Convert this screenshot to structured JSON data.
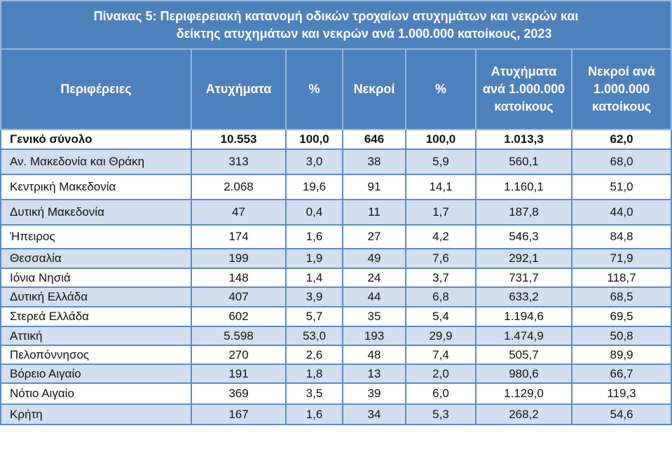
{
  "table": {
    "title_line1": "Πίνακας 5: Περιφερειακή κατανομή οδικών τροχαίων ατυχημάτων και νεκρών και",
    "title_line2": "δείκτης ατυχημάτων και νεκρών ανά 1.000.000 κατοίκους, 2023",
    "headers": [
      "Περιφέρειες",
      "Ατυχήματα",
      "%",
      "Νεκροί",
      "%",
      "Ατυχήματα ανά 1.000.000 κατοίκους",
      "Νεκροί ανά 1.000.000 κατοίκους"
    ],
    "colors": {
      "header_bg": "#4f81bd",
      "band_bg": "#d3dff0",
      "border": "#5b8bc6"
    },
    "total": [
      "Γενικό σύνολο",
      "10.553",
      "100,0",
      "646",
      "100,0",
      "1.013,3",
      "62,0"
    ],
    "rows": [
      [
        "Αν. Μακεδονία και Θράκη",
        "313",
        "3,0",
        "38",
        "5,9",
        "560,1",
        "68,0"
      ],
      [
        "Κεντρική Μακεδονία",
        "2.068",
        "19,6",
        "91",
        "14,1",
        "1.160,1",
        "51,0"
      ],
      [
        "Δυτική Μακεδονία",
        "47",
        "0,4",
        "11",
        "1,7",
        "187,8",
        "44,0"
      ],
      [
        "Ήπειρος",
        "174",
        "1,6",
        "27",
        "4,2",
        "546,3",
        "84,8"
      ],
      [
        "Θεσσαλία",
        "199",
        "1,9",
        "49",
        "7,6",
        "292,1",
        "71,9"
      ],
      [
        "Ιόνια Νησιά",
        "148",
        "1,4",
        "24",
        "3,7",
        "731,7",
        "118,7"
      ],
      [
        "Δυτική Ελλάδα",
        "407",
        "3,9",
        "44",
        "6,8",
        "633,2",
        "68,5"
      ],
      [
        "Στερεά Ελλάδα",
        "602",
        "5,7",
        "35",
        "5,4",
        "1.194,6",
        "69,5"
      ],
      [
        "Αττική",
        "5.598",
        "53,0",
        "193",
        "29,9",
        "1.474,9",
        "50,8"
      ],
      [
        "Πελοπόννησος",
        "270",
        "2,6",
        "48",
        "7,4",
        "505,7",
        "89,9"
      ],
      [
        "Βόρειο Αιγαίο",
        "191",
        "1,8",
        "13",
        "2,0",
        "980,6",
        "66,7"
      ],
      [
        "Νότιο Αιγαίο",
        "369",
        "3,5",
        "39",
        "6,0",
        "1.129,0",
        "119,3"
      ],
      [
        "Κρήτη",
        "167",
        "1,6",
        "34",
        "5,3",
        "268,2",
        "54,6"
      ]
    ]
  }
}
